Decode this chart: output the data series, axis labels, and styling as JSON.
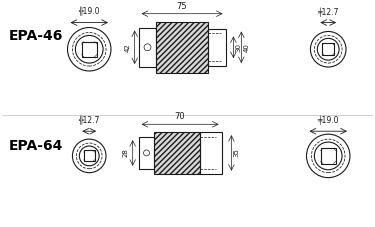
{
  "bg_color": "#ffffff",
  "line_color": "#1a1a1a",
  "hatch_color": "#555555",
  "label_color": "#000000",
  "epa46": {
    "label": "EPA-46",
    "front_dim": "19.0",
    "front_sym": "╔",
    "back_dim": "12.7",
    "back_sym": "╙",
    "length": "75",
    "dim_42": "42",
    "dim_30": "30",
    "dim_40": "40"
  },
  "epa64": {
    "label": "EPA-64",
    "front_dim": "12.7",
    "front_sym": "╔",
    "back_dim": "19.0",
    "back_sym": "╙",
    "length": "70",
    "dim_28": "28",
    "dim_35": "35"
  }
}
